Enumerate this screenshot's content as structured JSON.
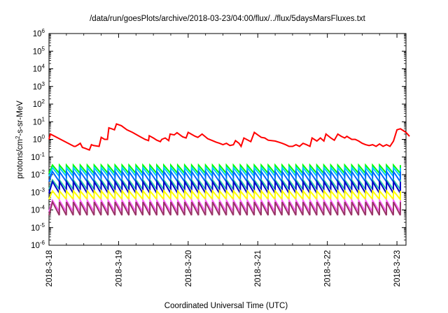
{
  "chart_data": {
    "type": "line",
    "title": "/data/run/goesPlots/archive/2018-03-23/04:00/flux/../flux/5daysMarsFluxes.txt",
    "xlabel": "Coordinated Universal Time (UTC)",
    "ylabel_parts": [
      "protons/cm",
      "2",
      "-s-sr-MeV"
    ],
    "x_range_days": [
      0,
      5.13
    ],
    "x_ticks": [
      {
        "label": "2018-3-18",
        "day": 0
      },
      {
        "label": "2018-3-19",
        "day": 1
      },
      {
        "label": "2018-3-20",
        "day": 2
      },
      {
        "label": "2018-3-21",
        "day": 3
      },
      {
        "label": "2018-3-22",
        "day": 4
      },
      {
        "label": "2018-3-23",
        "day": 5
      }
    ],
    "y_scale": "log",
    "y_exp_range": [
      -6,
      6
    ],
    "y_ticks": [
      {
        "base": "10",
        "exp": "6",
        "e": 6
      },
      {
        "base": "10",
        "exp": "5",
        "e": 5
      },
      {
        "base": "10",
        "exp": "4",
        "e": 4
      },
      {
        "base": "10",
        "exp": "3",
        "e": 3
      },
      {
        "base": "10",
        "exp": "2",
        "e": 2
      },
      {
        "base": "10",
        "exp": "1",
        "e": 1
      },
      {
        "base": "10",
        "exp": "0",
        "e": 0
      },
      {
        "base": "10",
        "exp": "-1",
        "e": -1
      },
      {
        "base": "10",
        "exp": "-2",
        "e": -2
      },
      {
        "base": "10",
        "exp": "-3",
        "e": -3
      },
      {
        "base": "10",
        "exp": "-4",
        "e": -4
      },
      {
        "base": "10",
        "exp": "-5",
        "e": -5
      },
      {
        "base": "10",
        "exp": "-6",
        "e": -6
      }
    ],
    "red_series": {
      "color": "#ff0000",
      "points": [
        [
          0.0,
          1.0
        ],
        [
          0.02,
          2.0
        ],
        [
          0.36,
          0.4
        ],
        [
          0.38,
          0.4
        ],
        [
          0.42,
          0.5
        ],
        [
          0.45,
          0.6
        ],
        [
          0.48,
          0.35
        ],
        [
          0.52,
          0.31
        ],
        [
          0.56,
          0.27
        ],
        [
          0.58,
          0.25
        ],
        [
          0.61,
          0.5
        ],
        [
          0.64,
          0.45
        ],
        [
          0.72,
          0.4
        ],
        [
          0.75,
          1.3
        ],
        [
          0.8,
          1.0
        ],
        [
          0.84,
          1.0
        ],
        [
          0.86,
          4.5
        ],
        [
          0.9,
          4.0
        ],
        [
          0.94,
          3.5
        ],
        [
          0.97,
          7.5
        ],
        [
          1.04,
          6.0
        ],
        [
          1.12,
          3.5
        ],
        [
          1.2,
          2.5
        ],
        [
          1.3,
          1.5
        ],
        [
          1.38,
          1.0
        ],
        [
          1.43,
          0.85
        ],
        [
          1.44,
          1.6
        ],
        [
          1.5,
          1.2
        ],
        [
          1.55,
          0.9
        ],
        [
          1.6,
          0.75
        ],
        [
          1.62,
          1.0
        ],
        [
          1.67,
          1.2
        ],
        [
          1.72,
          0.85
        ],
        [
          1.74,
          2.0
        ],
        [
          1.8,
          1.8
        ],
        [
          1.84,
          2.4
        ],
        [
          1.92,
          1.4
        ],
        [
          1.97,
          1.2
        ],
        [
          2.0,
          2.5
        ],
        [
          2.1,
          1.5
        ],
        [
          2.14,
          1.3
        ],
        [
          2.2,
          2.0
        ],
        [
          2.28,
          1.1
        ],
        [
          2.35,
          0.85
        ],
        [
          2.4,
          0.7
        ],
        [
          2.45,
          0.6
        ],
        [
          2.5,
          0.5
        ],
        [
          2.55,
          0.6
        ],
        [
          2.6,
          0.45
        ],
        [
          2.65,
          0.5
        ],
        [
          2.68,
          0.85
        ],
        [
          2.73,
          0.6
        ],
        [
          2.76,
          0.4
        ],
        [
          2.8,
          1.2
        ],
        [
          2.9,
          0.75
        ],
        [
          2.95,
          2.5
        ],
        [
          3.0,
          1.8
        ],
        [
          3.05,
          1.3
        ],
        [
          3.1,
          1.2
        ],
        [
          3.15,
          0.9
        ],
        [
          3.25,
          0.8
        ],
        [
          3.3,
          0.7
        ],
        [
          3.35,
          0.6
        ],
        [
          3.4,
          0.5
        ],
        [
          3.45,
          0.4
        ],
        [
          3.5,
          0.4
        ],
        [
          3.55,
          0.5
        ],
        [
          3.6,
          0.4
        ],
        [
          3.65,
          0.6
        ],
        [
          3.7,
          0.5
        ],
        [
          3.75,
          0.4
        ],
        [
          3.78,
          1.2
        ],
        [
          3.85,
          0.8
        ],
        [
          3.9,
          1.2
        ],
        [
          3.95,
          0.8
        ],
        [
          3.98,
          2.0
        ],
        [
          4.05,
          1.2
        ],
        [
          4.1,
          0.9
        ],
        [
          4.15,
          2.0
        ],
        [
          4.2,
          1.5
        ],
        [
          4.25,
          1.2
        ],
        [
          4.28,
          1.5
        ],
        [
          4.35,
          1.0
        ],
        [
          4.4,
          1.0
        ],
        [
          4.45,
          0.8
        ],
        [
          4.5,
          0.6
        ],
        [
          4.55,
          0.5
        ],
        [
          4.6,
          0.45
        ],
        [
          4.65,
          0.5
        ],
        [
          4.7,
          0.4
        ],
        [
          4.75,
          0.55
        ],
        [
          4.8,
          0.4
        ],
        [
          4.85,
          0.5
        ],
        [
          4.9,
          0.4
        ],
        [
          4.95,
          0.8
        ],
        [
          5.0,
          3.5
        ],
        [
          5.05,
          4.0
        ],
        [
          5.1,
          3.0
        ],
        [
          5.13,
          2.5
        ],
        [
          5.18,
          1.5
        ]
      ]
    },
    "sawtooth_series": [
      {
        "color": "#00ff00",
        "peak": 0.035,
        "trough": 0.012,
        "period": 0.1,
        "phase": 0.05
      },
      {
        "color": "#00c8ff",
        "peak": 0.025,
        "trough": 0.008,
        "period": 0.1,
        "phase": 0.05
      },
      {
        "color": "#0066ff",
        "peak": 0.015,
        "trough": 0.004,
        "period": 0.1,
        "phase": 0.05
      },
      {
        "color": "#33ccaa",
        "peak": 0.005,
        "trough": 0.0015,
        "period": 0.1,
        "phase": 0.05
      },
      {
        "color": "#0000cc",
        "peak": 0.004,
        "trough": 0.0009,
        "period": 0.1,
        "phase": 0.05
      },
      {
        "color": "#ffff00",
        "peak": 0.0012,
        "trough": 0.0004,
        "period": 0.1,
        "phase": 0.05
      },
      {
        "color": "#ff66ff",
        "peak": 0.00035,
        "trough": 8e-05,
        "period": 0.1,
        "phase": 0.05
      },
      {
        "color": "#993366",
        "peak": 0.00028,
        "trough": 5e-05,
        "period": 0.1,
        "phase": 0.05
      }
    ]
  }
}
